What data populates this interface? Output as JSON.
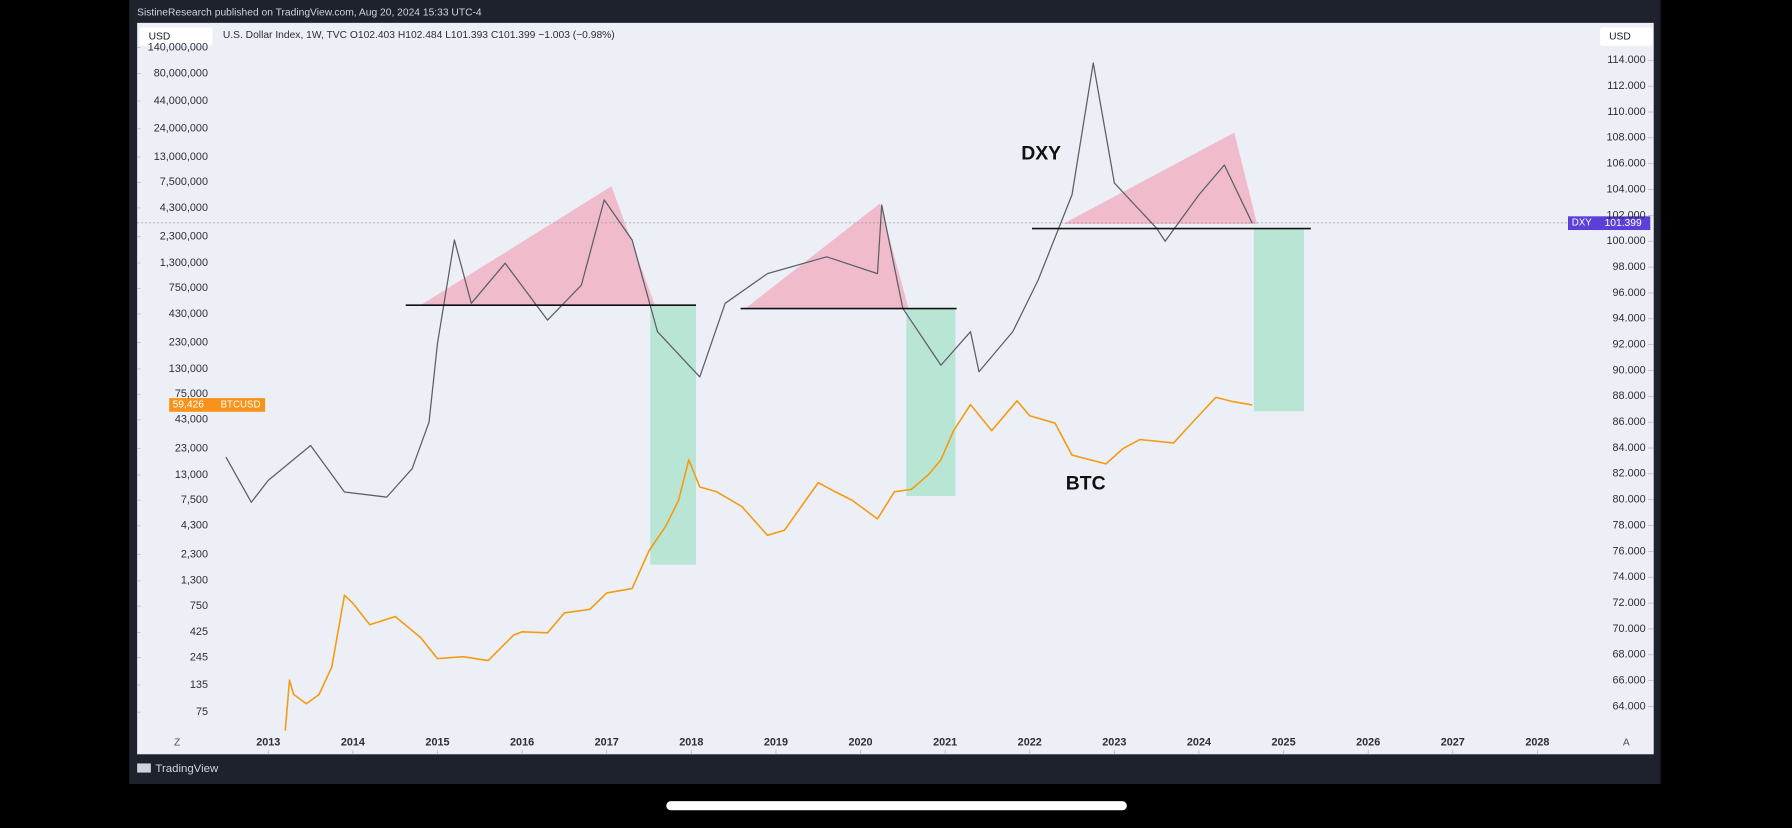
{
  "header": {
    "published": "SistineResearch published on TradingView.com, Aug 20, 2024 15:33 UTC-4"
  },
  "chart_data": {
    "type": "line",
    "legend_text": "U.S. Dollar Index, 1W, TVC  O102.403  H102.484  L101.393  C101.399  −1.003 (−0.98%)",
    "currency_left": "USD",
    "currency_right": "USD",
    "annotations": [
      "DXY",
      "BTC"
    ],
    "scale_buttons": [
      "Z",
      "A"
    ],
    "xlim": [
      2011.45,
      2028.74
    ],
    "xticks": [
      2013,
      2014,
      2015,
      2016,
      2017,
      2018,
      2019,
      2020,
      2021,
      2022,
      2023,
      2024,
      2025,
      2026,
      2027,
      2028
    ],
    "log_y": true,
    "ylim": [
      30,
      240000000
    ],
    "yticks": [
      {
        "value": 140000000,
        "label": "140,000,000"
      },
      {
        "value": 80000000,
        "label": "80,000,000"
      },
      {
        "value": 44000000,
        "label": "44,000,000"
      },
      {
        "value": 24000000,
        "label": "24,000,000"
      },
      {
        "value": 13000000,
        "label": "13,000,000"
      },
      {
        "value": 7500000,
        "label": "7,500,000"
      },
      {
        "value": 4300000,
        "label": "4,300,000"
      },
      {
        "value": 2300000,
        "label": "2,300,000"
      },
      {
        "value": 1300000,
        "label": "1,300,000"
      },
      {
        "value": 750000,
        "label": "750,000"
      },
      {
        "value": 430000,
        "label": "430,000"
      },
      {
        "value": 230000,
        "label": "230,000"
      },
      {
        "value": 130000,
        "label": "130,000"
      },
      {
        "value": 75000,
        "label": "75,000"
      },
      {
        "value": 43000,
        "label": "43,000"
      },
      {
        "value": 23000,
        "label": "23,000"
      },
      {
        "value": 13000,
        "label": "13,000"
      },
      {
        "value": 7500,
        "label": "7,500"
      },
      {
        "value": 4300,
        "label": "4,300"
      },
      {
        "value": 2300,
        "label": "2,300"
      },
      {
        "value": 1300,
        "label": "1,300"
      },
      750,
      425,
      245,
      135,
      75
    ],
    "y2lim": [
      60.3,
      116.9
    ],
    "y2ticks": [
      {
        "value": 64,
        "label": "64.000"
      },
      {
        "value": 66,
        "label": "66.000"
      },
      {
        "value": 68,
        "label": "68.000"
      },
      {
        "value": 70,
        "label": "70.000"
      },
      {
        "value": 72,
        "label": "72.000"
      },
      {
        "value": 74,
        "label": "74.000"
      },
      {
        "value": 76,
        "label": "76.000"
      },
      {
        "value": 78,
        "label": "78.000"
      },
      {
        "value": 80,
        "label": "80.000"
      },
      {
        "value": 82,
        "label": "82.000"
      },
      {
        "value": 84,
        "label": "84.000"
      },
      {
        "value": 86,
        "label": "86.000"
      },
      {
        "value": 88,
        "label": "88.000"
      },
      {
        "value": 90,
        "label": "90.000"
      },
      {
        "value": 92,
        "label": "92.000"
      },
      {
        "value": 94,
        "label": "94.000"
      },
      {
        "value": 96,
        "label": "96.000"
      },
      {
        "value": 98,
        "label": "98.000"
      },
      {
        "value": 100,
        "label": "100.000"
      },
      {
        "value": 102,
        "label": "102.000"
      },
      {
        "value": 104,
        "label": "104.000"
      },
      {
        "value": 106,
        "label": "106.000"
      },
      {
        "value": 108,
        "label": "108.000"
      },
      {
        "value": 110,
        "label": "110.000"
      },
      {
        "value": 112,
        "label": "112.000"
      },
      {
        "value": 114,
        "label": "114.000"
      }
    ],
    "series": [
      {
        "name": "DXY",
        "color": "#5d5f66",
        "axis": "y2",
        "last_price": 101.399,
        "marker_color": "#5b3fd8",
        "x": [
          2012.5,
          2012.8,
          2013.0,
          2013.5,
          2013.9,
          2014.4,
          2014.7,
          2014.9,
          2015.0,
          2015.2,
          2015.4,
          2015.8,
          2016.3,
          2016.7,
          2016.97,
          2017.3,
          2017.6,
          2018.1,
          2018.4,
          2018.9,
          2019.6,
          2020.2,
          2020.25,
          2020.5,
          2020.95,
          2021.3,
          2021.4,
          2021.8,
          2022.1,
          2022.5,
          2022.75,
          2023.0,
          2023.5,
          2023.6,
          2024.0,
          2024.3,
          2024.63
        ],
        "values": [
          83.3,
          79.8,
          81.5,
          84.2,
          80.6,
          80.2,
          82.4,
          86,
          92.1,
          100.1,
          95.2,
          98.3,
          93.9,
          96.6,
          103.2,
          100.1,
          93,
          89.5,
          95.2,
          97.5,
          98.8,
          97.5,
          102.8,
          94.8,
          90.4,
          93,
          89.9,
          93,
          97,
          103.6,
          113.8,
          104.5,
          101,
          100,
          103.6,
          105.9,
          101.399
        ]
      },
      {
        "name": "BTCUSD",
        "color": "#f39c12",
        "last_price": {
          "value": 59426,
          "label": "59,426"
        },
        "marker_color": "#f7931a",
        "x": [
          2013.2,
          2013.25,
          2013.3,
          2013.45,
          2013.6,
          2013.75,
          2013.9,
          2014.0,
          2014.2,
          2014.5,
          2014.8,
          2015.0,
          2015.3,
          2015.6,
          2015.9,
          2016.0,
          2016.3,
          2016.5,
          2016.8,
          2017.0,
          2017.3,
          2017.5,
          2017.7,
          2017.85,
          2017.97,
          2018.1,
          2018.3,
          2018.6,
          2018.9,
          2019.1,
          2019.5,
          2019.7,
          2019.9,
          2020.2,
          2020.4,
          2020.6,
          2020.8,
          2020.95,
          2021.1,
          2021.3,
          2021.55,
          2021.85,
          2022.0,
          2022.3,
          2022.5,
          2022.9,
          2023.1,
          2023.3,
          2023.7,
          2023.95,
          2024.2,
          2024.4,
          2024.63
        ],
        "values": [
          50,
          150,
          110,
          90,
          110,
          200,
          950,
          800,
          500,
          600,
          380,
          240,
          250,
          230,
          400,
          430,
          420,
          650,
          700,
          1000,
          1100,
          2500,
          4300,
          7500,
          18000,
          10000,
          9000,
          6500,
          3500,
          3900,
          11000,
          9000,
          7500,
          5000,
          9000,
          9500,
          13000,
          18000,
          34000,
          60000,
          34000,
          65000,
          47000,
          40000,
          20000,
          16500,
          23000,
          28000,
          26000,
          43000,
          70000,
          64000,
          59426
        ]
      }
    ]
  },
  "footer": {
    "brand": "TradingView"
  }
}
